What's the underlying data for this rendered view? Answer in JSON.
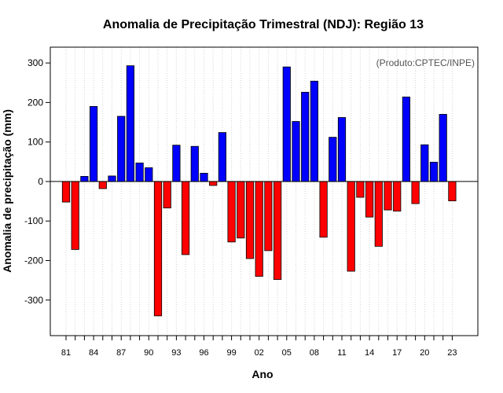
{
  "chart_data": {
    "type": "bar",
    "title": "Anomalia de Precipitação Trimestral (NDJ): Região 13",
    "xlabel": "Ano",
    "ylabel": "Anomalia de precipitação (mm)",
    "source_note": "(Produto:CPTEC/INPE)",
    "years": [
      1981,
      1982,
      1983,
      1984,
      1985,
      1986,
      1987,
      1988,
      1989,
      1990,
      1991,
      1992,
      1993,
      1994,
      1995,
      1996,
      1997,
      1998,
      1999,
      2000,
      2001,
      2002,
      2003,
      2004,
      2005,
      2006,
      2007,
      2008,
      2009,
      2010,
      2011,
      2012,
      2013,
      2014,
      2015,
      2016,
      2017,
      2018,
      2019,
      2020,
      2021,
      2022,
      2023
    ],
    "values": [
      -52,
      -172,
      13,
      190,
      -18,
      14,
      165,
      293,
      47,
      35,
      -340,
      -67,
      92,
      -185,
      89,
      21,
      -10,
      124,
      -153,
      -143,
      -195,
      -240,
      -175,
      -248,
      290,
      152,
      226,
      254,
      -141,
      112,
      162,
      -227,
      -40,
      -90,
      -164,
      -72,
      -75,
      214,
      -56,
      93,
      49,
      170,
      -49
    ],
    "x_tick_labels": [
      "81",
      "84",
      "87",
      "90",
      "93",
      "96",
      "99",
      "02",
      "05",
      "08",
      "11",
      "14",
      "17",
      "20",
      "23"
    ],
    "x_tick_years": [
      1981,
      1984,
      1987,
      1990,
      1993,
      1996,
      1999,
      2002,
      2005,
      2008,
      2011,
      2014,
      2017,
      2020,
      2023
    ],
    "y_ticks": [
      -300,
      -200,
      -100,
      0,
      100,
      200,
      300
    ],
    "y_tick_labels": [
      "-300",
      "-200",
      "-100",
      "0",
      "100",
      "200",
      "300"
    ],
    "ylim": [
      -390,
      340
    ],
    "colors": {
      "positive": "#0000ff",
      "negative": "#ff0000",
      "grid": "#d3d3d3"
    },
    "grid": "vertical dotted"
  }
}
